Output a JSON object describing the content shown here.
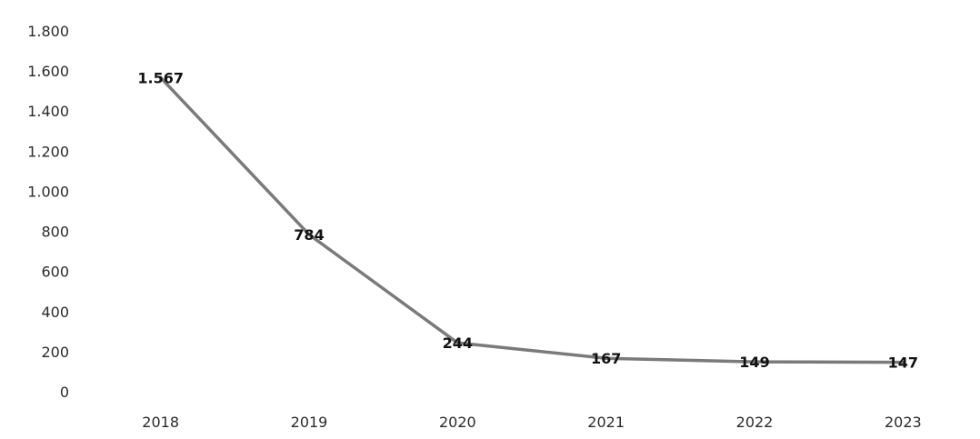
{
  "chart_data": {
    "type": "line",
    "title": "",
    "xlabel": "",
    "ylabel": "",
    "categories": [
      "2018",
      "2019",
      "2020",
      "2021",
      "2022",
      "2023"
    ],
    "series": [
      {
        "values": [
          1567,
          784,
          244,
          167,
          149,
          147
        ],
        "labels": [
          "1.567",
          "784",
          "244",
          "167",
          "149",
          "147"
        ]
      }
    ],
    "ylim": [
      0,
      1800
    ],
    "yticks": [
      {
        "value": 0,
        "label": "0"
      },
      {
        "value": 200,
        "label": "200"
      },
      {
        "value": 400,
        "label": "400"
      },
      {
        "value": 600,
        "label": "600"
      },
      {
        "value": 800,
        "label": "800"
      },
      {
        "value": 1000,
        "label": "1.000"
      },
      {
        "value": 1200,
        "label": "1.200"
      },
      {
        "value": 1400,
        "label": "1.400"
      },
      {
        "value": 1600,
        "label": "1.600"
      },
      {
        "value": 1800,
        "label": "1.800"
      }
    ],
    "grid": false,
    "legend": "none",
    "line_color": "#7a7a7a"
  }
}
